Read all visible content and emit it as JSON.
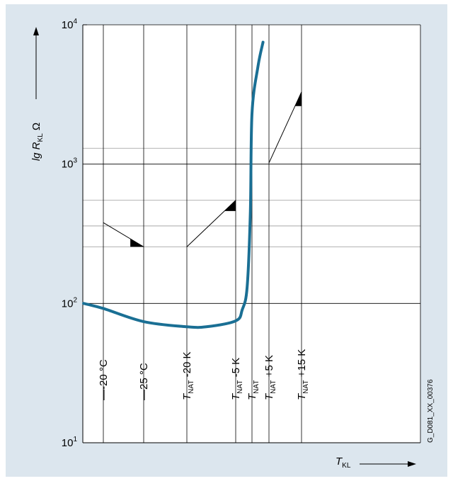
{
  "chart_data": {
    "type": "line",
    "title": "",
    "ylabel": {
      "prefix": "lg ",
      "var": "R",
      "sub": "KL",
      "unit": " Ω"
    },
    "xlabel": {
      "var": "T",
      "sub": "KL"
    },
    "yscale": "log",
    "ylim": [
      10,
      10000
    ],
    "yticks": [
      {
        "value": 10,
        "base": "10",
        "exp": "1"
      },
      {
        "value": 100,
        "base": "10",
        "exp": "2"
      },
      {
        "value": 1000,
        "base": "10",
        "exp": "3"
      },
      {
        "value": 10000,
        "base": "10",
        "exp": "4"
      }
    ],
    "extra_gridlines": [
      1300,
      550,
      360,
      255
    ],
    "x_markers": [
      {
        "name": "m20c",
        "pre": "-20 °C",
        "sub": "",
        "post": ""
      },
      {
        "name": "m25c",
        "pre": "25 °C",
        "sub": "",
        "post": ""
      },
      {
        "name": "mnat-20",
        "pre": "T",
        "sub": "NAT",
        "post": " -20 K"
      },
      {
        "name": "mnat-5",
        "pre": "T",
        "sub": "NAT",
        "post": " -5 K"
      },
      {
        "name": "mnat",
        "pre": "T",
        "sub": "NAT",
        "post": ""
      },
      {
        "name": "mnat+5",
        "pre": "T",
        "sub": "NAT",
        "post": " +5 K"
      },
      {
        "name": "mnat+15",
        "pre": "T",
        "sub": "NAT",
        "post": " +15 K"
      }
    ],
    "series": [
      {
        "color": "#1a6f94",
        "points": [
          {
            "marker": 0,
            "offset": -0.45,
            "y": 100
          },
          {
            "marker": 0,
            "offset": 0,
            "y": 92
          },
          {
            "marker": 1,
            "offset": 0,
            "y": 74
          },
          {
            "marker": 2,
            "offset": 0,
            "y": 68
          },
          {
            "marker": 3,
            "offset": -0.6,
            "y": 68
          },
          {
            "marker": 3,
            "offset": 0,
            "y": 75
          },
          {
            "marker": 3,
            "offset": 0.4,
            "y": 90
          },
          {
            "marker": 3,
            "offset": 0.7,
            "y": 130
          },
          {
            "marker": 3,
            "offset": 0.9,
            "y": 450
          },
          {
            "marker": 4,
            "offset": 0,
            "y": 2300
          },
          {
            "marker": 4,
            "offset": 0.35,
            "y": 5000
          },
          {
            "marker": 4,
            "offset": 0.65,
            "y": 7500
          }
        ]
      }
    ],
    "tolerance_segments": [
      {
        "from": {
          "marker": 0,
          "y": 380
        },
        "to": {
          "marker": 1,
          "y": 255
        }
      },
      {
        "from": {
          "marker": 2,
          "y": 255
        },
        "to": {
          "marker": 3,
          "y": 550
        }
      },
      {
        "from": {
          "marker": 5,
          "y": 1020
        },
        "to": {
          "marker": 6,
          "y": 3300
        }
      }
    ],
    "code": "G_D081_XX_00376"
  }
}
